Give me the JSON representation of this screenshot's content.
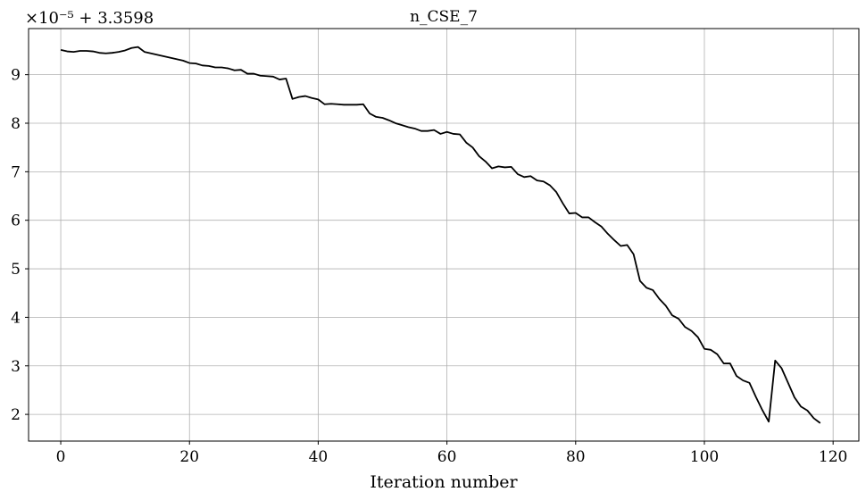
{
  "chart_data": {
    "type": "line",
    "title": "n_CSE_7",
    "xlabel": "Iteration number",
    "ylabel": "",
    "y_offset_text": "×10⁻⁵ + 3.3598",
    "xlim": [
      -5,
      124
    ],
    "ylim": [
      1.45,
      9.95
    ],
    "xticks": [
      0,
      20,
      40,
      60,
      80,
      100,
      120
    ],
    "yticks": [
      2,
      3,
      4,
      5,
      6,
      7,
      8,
      9
    ],
    "grid": true,
    "series": [
      {
        "color": "#000000",
        "x": [
          0,
          1,
          2,
          3,
          4,
          5,
          6,
          7,
          8,
          9,
          10,
          11,
          12,
          13,
          14,
          15,
          16,
          17,
          18,
          19,
          20,
          21,
          22,
          23,
          24,
          25,
          26,
          27,
          28,
          29,
          30,
          31,
          32,
          33,
          34,
          35,
          36,
          37,
          38,
          39,
          40,
          41,
          42,
          43,
          44,
          45,
          46,
          47,
          48,
          49,
          50,
          51,
          52,
          53,
          54,
          55,
          56,
          57,
          58,
          59,
          60,
          61,
          62,
          63,
          64,
          65,
          66,
          67,
          68,
          69,
          70,
          71,
          72,
          73,
          74,
          75,
          76,
          77,
          78,
          79,
          80,
          81,
          82,
          83,
          84,
          85,
          86,
          87,
          88,
          89,
          90,
          91,
          92,
          93,
          94,
          95,
          96,
          97,
          98,
          99,
          100,
          101,
          102,
          103,
          104,
          105,
          106,
          107,
          108,
          109,
          110,
          111,
          112,
          113,
          114,
          115,
          116,
          117,
          118
        ],
        "y": [
          9.51,
          9.48,
          9.47,
          9.49,
          9.49,
          9.48,
          9.45,
          9.44,
          9.45,
          9.47,
          9.5,
          9.55,
          9.57,
          9.47,
          9.44,
          9.41,
          9.38,
          9.35,
          9.32,
          9.29,
          9.24,
          9.23,
          9.19,
          9.18,
          9.15,
          9.15,
          9.13,
          9.09,
          9.1,
          9.02,
          9.02,
          8.98,
          8.97,
          8.96,
          8.9,
          8.92,
          8.5,
          8.54,
          8.56,
          8.52,
          8.49,
          8.39,
          8.4,
          8.39,
          8.38,
          8.38,
          8.38,
          8.39,
          8.2,
          8.13,
          8.11,
          8.06,
          8.0,
          7.96,
          7.92,
          7.89,
          7.84,
          7.84,
          7.86,
          7.78,
          7.82,
          7.78,
          7.77,
          7.6,
          7.5,
          7.32,
          7.21,
          7.07,
          7.11,
          7.09,
          7.1,
          6.95,
          6.89,
          6.91,
          6.82,
          6.8,
          6.72,
          6.58,
          6.35,
          6.14,
          6.15,
          6.06,
          6.06,
          5.96,
          5.87,
          5.72,
          5.59,
          5.47,
          5.49,
          5.3,
          4.75,
          4.61,
          4.56,
          4.38,
          4.24,
          4.04,
          3.97,
          3.8,
          3.72,
          3.59,
          3.35,
          3.33,
          3.24,
          3.05,
          3.05,
          2.79,
          2.7,
          2.65,
          2.36,
          2.09,
          1.85,
          3.11,
          2.95,
          2.65,
          2.35,
          2.16,
          2.08,
          1.92,
          1.82
        ]
      }
    ]
  }
}
